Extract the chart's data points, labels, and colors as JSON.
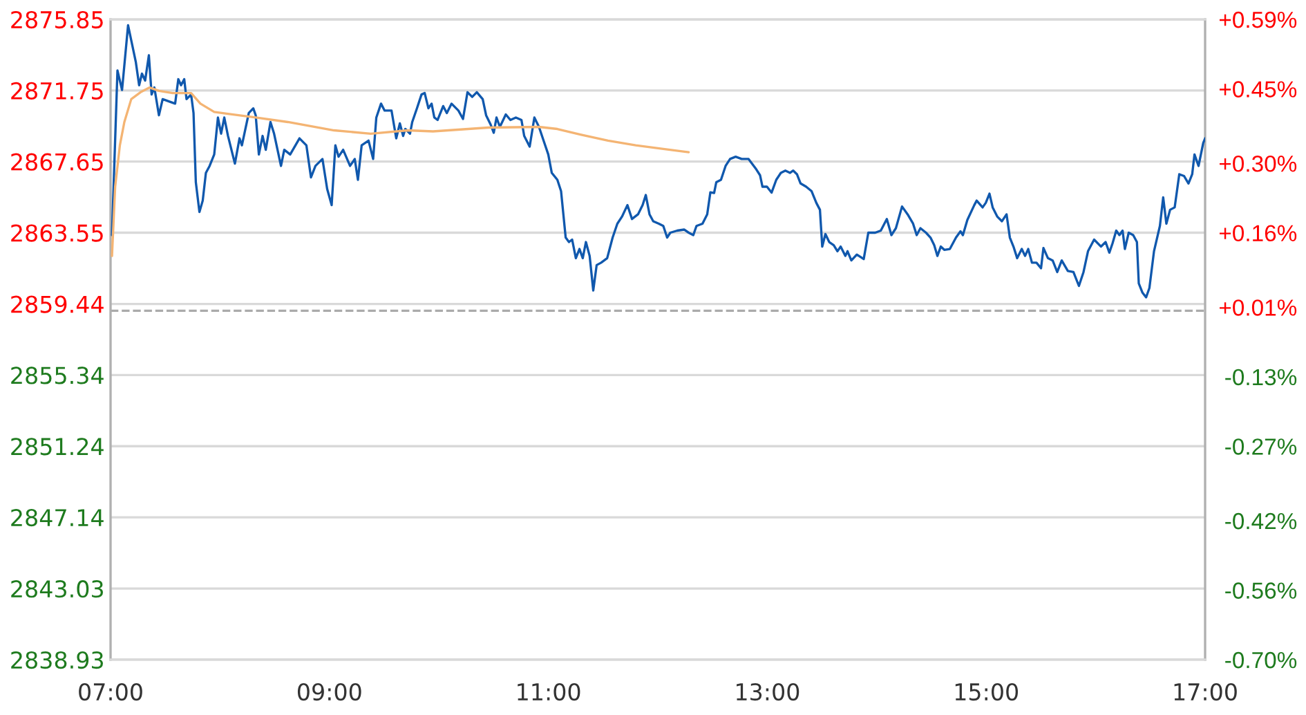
{
  "chart_data": {
    "type": "line",
    "xlim": [
      7,
      17
    ],
    "xticks": [
      {
        "value": 7,
        "label": "07:00"
      },
      {
        "value": 9,
        "label": "09:00"
      },
      {
        "value": 11,
        "label": "11:00"
      },
      {
        "value": 13,
        "label": "13:00"
      },
      {
        "value": 15,
        "label": "15:00"
      },
      {
        "value": 17,
        "label": "17:00"
      }
    ],
    "ylim": [
      2838.93,
      2875.85
    ],
    "yticks": [
      2838.93,
      2843.03,
      2847.14,
      2851.24,
      2855.34,
      2859.44,
      2863.55,
      2867.65,
      2871.75,
      2875.85
    ],
    "y2lim": [
      -0.7,
      0.59
    ],
    "y2ticks": [
      {
        "value": -0.7,
        "label": "-0.70%"
      },
      {
        "value": -0.56,
        "label": "-0.56%"
      },
      {
        "value": -0.42,
        "label": "-0.42%"
      },
      {
        "value": -0.27,
        "label": "-0.27%"
      },
      {
        "value": -0.13,
        "label": "-0.13%"
      },
      {
        "value": 0.01,
        "label": "+0.01%"
      },
      {
        "value": 0.16,
        "label": "+0.16%"
      },
      {
        "value": 0.3,
        "label": "+0.30%"
      },
      {
        "value": 0.45,
        "label": "+0.45%"
      },
      {
        "value": 0.59,
        "label": "+0.59%"
      }
    ],
    "grid": "y",
    "ref_lines": [
      {
        "axis": "y",
        "value": 2859.05,
        "color": "#aaaaaa",
        "line_style": "dashed"
      }
    ],
    "series": [
      {
        "color": "#1058ad",
        "x": [
          7.013,
          7.063,
          7.105,
          7.16,
          7.231,
          7.261,
          7.287,
          7.316,
          7.35,
          7.375,
          7.4,
          7.442,
          7.476,
          7.59,
          7.619,
          7.644,
          7.673,
          7.694,
          7.736,
          7.758,
          7.779,
          7.812,
          7.842,
          7.871,
          7.905,
          7.947,
          7.981,
          8.01,
          8.039,
          8.073,
          8.136,
          8.178,
          8.2,
          8.263,
          8.304,
          8.326,
          8.355,
          8.389,
          8.418,
          8.461,
          8.494,
          8.557,
          8.587,
          8.641,
          8.726,
          8.789,
          8.831,
          8.872,
          8.936,
          8.979,
          9.02,
          9.054,
          9.083,
          9.125,
          9.188,
          9.231,
          9.26,
          9.294,
          9.357,
          9.399,
          9.428,
          9.471,
          9.504,
          9.567,
          9.61,
          9.643,
          9.673,
          9.693,
          9.736,
          9.756,
          9.799,
          9.841,
          9.87,
          9.904,
          9.933,
          9.958,
          9.988,
          10.039,
          10.072,
          10.115,
          10.178,
          10.22,
          10.261,
          10.304,
          10.346,
          10.4,
          10.431,
          10.472,
          10.501,
          10.526,
          10.557,
          10.611,
          10.653,
          10.703,
          10.754,
          10.779,
          10.829,
          10.872,
          10.914,
          10.956,
          10.999,
          11.031,
          11.082,
          11.116,
          11.158,
          11.188,
          11.217,
          11.251,
          11.284,
          11.314,
          11.343,
          11.377,
          11.41,
          11.441,
          11.482,
          11.537,
          11.587,
          11.63,
          11.672,
          11.722,
          11.764,
          11.819,
          11.861,
          11.89,
          11.924,
          11.958,
          12.009,
          12.05,
          12.085,
          12.114,
          12.177,
          12.24,
          12.282,
          12.324,
          12.353,
          12.408,
          12.451,
          12.48,
          12.514,
          12.534,
          12.577,
          12.619,
          12.66,
          12.711,
          12.766,
          12.829,
          12.893,
          12.934,
          12.956,
          12.997,
          13.039,
          13.082,
          13.124,
          13.165,
          13.208,
          13.237,
          13.271,
          13.304,
          13.355,
          13.405,
          13.448,
          13.481,
          13.502,
          13.531,
          13.566,
          13.607,
          13.641,
          13.67,
          13.713,
          13.733,
          13.768,
          13.818,
          13.881,
          13.923,
          13.986,
          14.037,
          14.092,
          14.134,
          14.175,
          14.231,
          14.282,
          14.332,
          14.365,
          14.399,
          14.45,
          14.491,
          14.525,
          14.554,
          14.585,
          14.617,
          14.668,
          14.724,
          14.765,
          14.787,
          14.828,
          14.891,
          14.913,
          14.967,
          14.996,
          15.03,
          15.059,
          15.102,
          15.144,
          15.186,
          15.216,
          15.249,
          15.283,
          15.325,
          15.355,
          15.384,
          15.418,
          15.459,
          15.501,
          15.523,
          15.564,
          15.607,
          15.649,
          15.69,
          15.746,
          15.797,
          15.847,
          15.889,
          15.93,
          15.986,
          16.049,
          16.091,
          16.125,
          16.154,
          16.188,
          16.217,
          16.246,
          16.267,
          16.302,
          16.343,
          16.377,
          16.394,
          16.428,
          16.461,
          16.491,
          16.533,
          16.587,
          16.617,
          16.646,
          16.68,
          16.722,
          16.764,
          16.807,
          16.848,
          16.882,
          16.903,
          16.94,
          16.983,
          17.0
        ],
        "values": [
          2863.41,
          2872.9,
          2871.78,
          2875.51,
          2873.38,
          2872.05,
          2872.72,
          2872.32,
          2873.78,
          2871.52,
          2871.92,
          2870.32,
          2871.25,
          2870.99,
          2872.4,
          2872.05,
          2872.4,
          2871.25,
          2871.52,
          2870.45,
          2866.46,
          2864.74,
          2865.4,
          2867.0,
          2867.4,
          2868.06,
          2870.19,
          2869.26,
          2870.19,
          2869.13,
          2867.53,
          2868.99,
          2868.59,
          2870.45,
          2870.72,
          2870.32,
          2868.06,
          2869.13,
          2868.33,
          2869.93,
          2869.26,
          2867.4,
          2868.33,
          2868.06,
          2868.99,
          2868.59,
          2866.74,
          2867.4,
          2867.8,
          2866.07,
          2865.14,
          2868.59,
          2867.93,
          2868.33,
          2867.4,
          2867.8,
          2866.6,
          2868.59,
          2868.86,
          2867.8,
          2870.19,
          2870.99,
          2870.59,
          2870.59,
          2868.99,
          2869.85,
          2869.13,
          2869.53,
          2869.26,
          2869.93,
          2870.72,
          2871.52,
          2871.6,
          2870.72,
          2870.99,
          2870.19,
          2870.05,
          2870.85,
          2870.45,
          2870.99,
          2870.59,
          2870.11,
          2871.65,
          2871.38,
          2871.65,
          2871.25,
          2870.32,
          2869.79,
          2869.31,
          2870.19,
          2869.65,
          2870.37,
          2870.05,
          2870.19,
          2870.05,
          2869.13,
          2868.51,
          2870.19,
          2869.65,
          2868.86,
          2868.06,
          2867.0,
          2866.6,
          2865.94,
          2863.27,
          2863.01,
          2863.15,
          2862.08,
          2862.61,
          2862.08,
          2863.01,
          2862.21,
          2860.22,
          2861.68,
          2861.82,
          2862.08,
          2863.27,
          2864.07,
          2864.47,
          2865.14,
          2864.34,
          2864.61,
          2865.14,
          2865.72,
          2864.61,
          2864.21,
          2864.07,
          2863.94,
          2863.27,
          2863.55,
          2863.67,
          2863.73,
          2863.55,
          2863.41,
          2863.94,
          2864.07,
          2864.61,
          2865.88,
          2865.84,
          2866.46,
          2866.6,
          2867.4,
          2867.8,
          2867.93,
          2867.8,
          2867.8,
          2867.26,
          2866.86,
          2866.2,
          2866.2,
          2865.86,
          2866.6,
          2867.0,
          2867.13,
          2867.0,
          2867.13,
          2866.92,
          2866.39,
          2866.2,
          2865.94,
          2865.27,
          2864.87,
          2862.75,
          2863.47,
          2863.01,
          2862.83,
          2862.48,
          2862.75,
          2862.21,
          2862.48,
          2861.95,
          2862.29,
          2862.03,
          2863.55,
          2863.55,
          2863.67,
          2864.34,
          2863.41,
          2863.81,
          2865.06,
          2864.61,
          2864.07,
          2863.41,
          2863.81,
          2863.55,
          2863.27,
          2862.83,
          2862.21,
          2862.75,
          2862.56,
          2862.61,
          2863.27,
          2863.63,
          2863.41,
          2864.29,
          2865.14,
          2865.4,
          2865.01,
          2865.27,
          2865.8,
          2865.01,
          2864.47,
          2864.21,
          2864.61,
          2863.27,
          2862.75,
          2862.08,
          2862.61,
          2862.21,
          2862.61,
          2861.82,
          2861.82,
          2861.5,
          2862.67,
          2862.08,
          2861.95,
          2861.28,
          2861.95,
          2861.34,
          2861.28,
          2860.48,
          2861.28,
          2862.48,
          2863.15,
          2862.75,
          2863.01,
          2862.4,
          2862.93,
          2863.67,
          2863.41,
          2863.67,
          2862.61,
          2863.55,
          2863.41,
          2863.01,
          2860.62,
          2860.09,
          2859.82,
          2860.36,
          2862.48,
          2863.94,
          2865.59,
          2864.07,
          2864.87,
          2865.01,
          2866.92,
          2866.82,
          2866.39,
          2866.92,
          2868.06,
          2867.4,
          2868.73,
          2868.99
        ]
      },
      {
        "color": "#f4b473",
        "x": [
          7.013,
          7.042,
          7.085,
          7.126,
          7.189,
          7.274,
          7.357,
          7.442,
          7.568,
          7.736,
          7.821,
          7.947,
          8.073,
          8.326,
          8.62,
          9.042,
          9.377,
          9.715,
          9.946,
          10.451,
          10.914,
          11.082,
          11.293,
          11.545,
          11.798,
          12.05,
          12.282
        ],
        "values": [
          2862.21,
          2866.2,
          2868.59,
          2869.93,
          2871.25,
          2871.65,
          2871.92,
          2871.73,
          2871.6,
          2871.6,
          2870.99,
          2870.51,
          2870.4,
          2870.19,
          2869.93,
          2869.45,
          2869.26,
          2869.45,
          2869.39,
          2869.61,
          2869.65,
          2869.53,
          2869.21,
          2868.86,
          2868.59,
          2868.38,
          2868.19
        ]
      }
    ]
  }
}
